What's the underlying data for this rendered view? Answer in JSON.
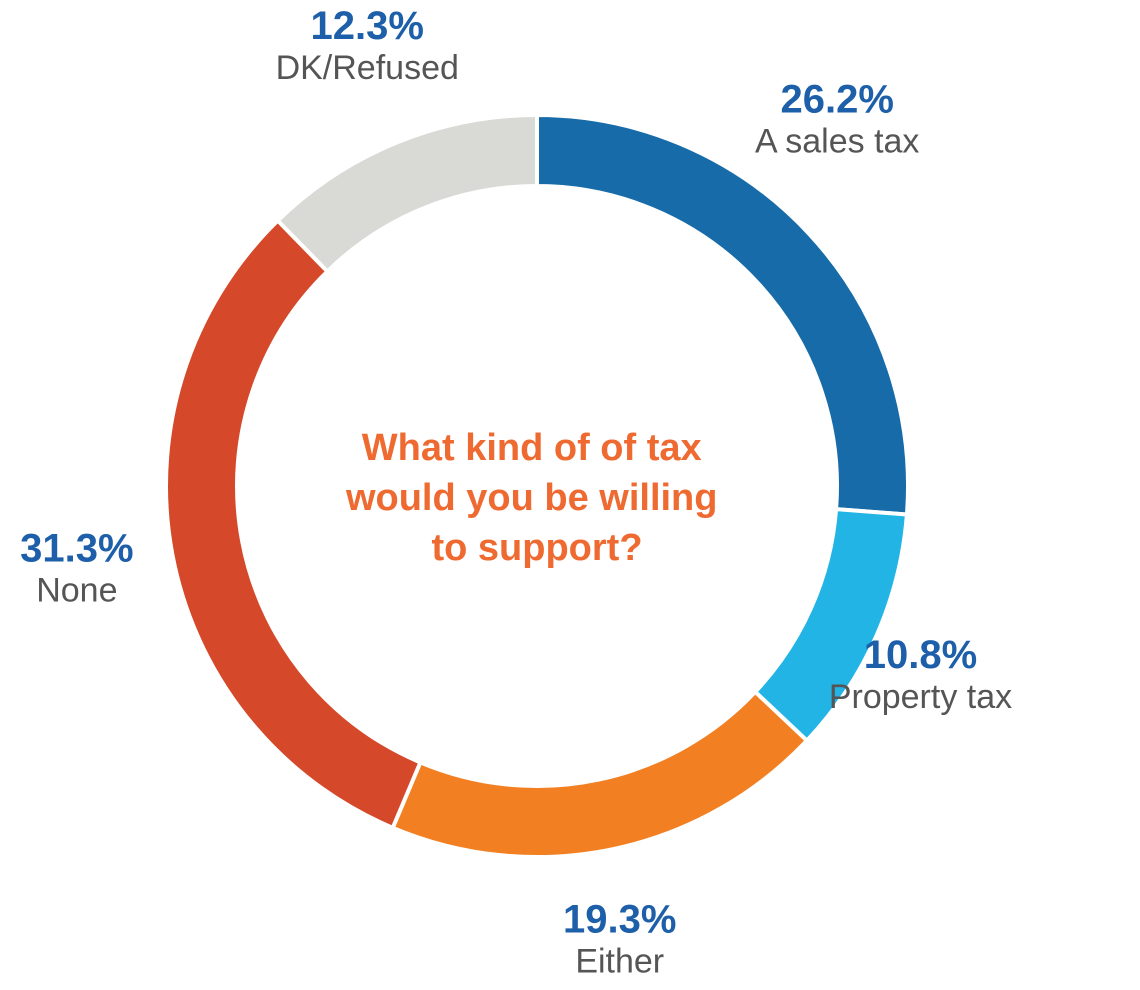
{
  "chart_data": {
    "type": "pie",
    "variant": "donut",
    "title": "What kind of of tax would you be willing to support?",
    "title_lines": [
      "What kind of of tax",
      "would you be willing",
      "to support?"
    ],
    "slices": [
      {
        "label": "A sales tax",
        "value": 26.2,
        "value_label": "26.2%",
        "color": "#166BA8"
      },
      {
        "label": "Property tax",
        "value": 10.8,
        "value_label": "10.8%",
        "color": "#23B4E6"
      },
      {
        "label": "Either",
        "value": 19.3,
        "value_label": "19.3%",
        "color": "#F28023"
      },
      {
        "label": "None",
        "value": 31.3,
        "value_label": "31.3%",
        "color": "#D5492A"
      },
      {
        "label": "DK/Refused",
        "value": 12.3,
        "value_label": "12.3%",
        "color": "#D9DAD6"
      }
    ],
    "start": "top",
    "direction": "clockwise",
    "legend": "none",
    "value_label_color": "#1D5FA8",
    "category_label_color": "#555555",
    "title_color": "#EE6A30"
  }
}
